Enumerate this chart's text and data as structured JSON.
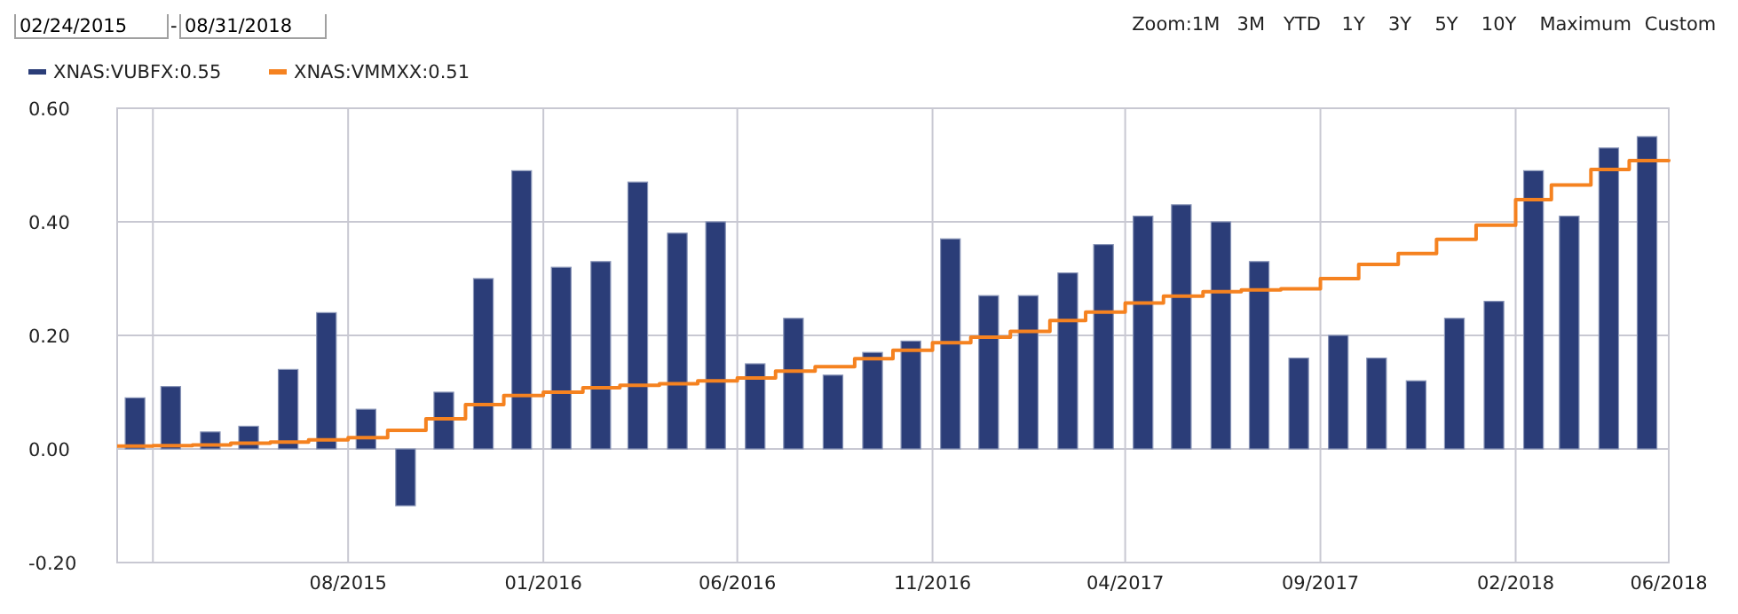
{
  "chart_data": {
    "type": "bar",
    "x": [
      "2015-02-15",
      "2015-03-15",
      "2015-04-15",
      "2015-05-15",
      "2015-06-15",
      "2015-07-15",
      "2015-08-15",
      "2015-09-15",
      "2015-10-15",
      "2015-11-15",
      "2015-12-15",
      "2016-01-15",
      "2016-02-15",
      "2016-03-15",
      "2016-04-15",
      "2016-05-15",
      "2016-06-15",
      "2016-07-15",
      "2016-08-15",
      "2016-09-15",
      "2016-10-15",
      "2016-11-15",
      "2016-12-15",
      "2017-01-15",
      "2017-02-15",
      "2017-03-15",
      "2017-04-15",
      "2017-05-15",
      "2017-06-15",
      "2017-07-15",
      "2017-08-15",
      "2017-09-15",
      "2017-10-15",
      "2017-11-15",
      "2017-12-15",
      "2018-01-15",
      "2018-02-15",
      "2018-03-15",
      "2018-04-15",
      "2018-05-15"
    ],
    "series": [
      {
        "name": "XNAS:VUBFX:0.55",
        "color": "#2b3d78",
        "values": [
          0.09,
          0.11,
          0.03,
          0.04,
          0.14,
          0.24,
          0.07,
          -0.1,
          0.1,
          0.3,
          0.49,
          0.32,
          0.33,
          0.47,
          0.38,
          0.4,
          0.15,
          0.23,
          0.13,
          0.17,
          0.19,
          0.37,
          0.27,
          0.27,
          0.31,
          0.36,
          0.41,
          0.43,
          0.4,
          0.33,
          0.16,
          0.2,
          0.16,
          0.12,
          0.23,
          0.26,
          0.49,
          0.41,
          0.53,
          0.55
        ]
      },
      {
        "name": "XNAS:VMMXX:0.51",
        "type": "step",
        "color": "#f58220",
        "x": [
          "2015-02-01",
          "2015-03-01",
          "2015-04-01",
          "2015-05-01",
          "2015-06-01",
          "2015-07-01",
          "2015-08-01",
          "2015-09-01",
          "2015-10-01",
          "2015-11-01",
          "2015-12-01",
          "2016-01-01",
          "2016-02-01",
          "2016-03-01",
          "2016-04-01",
          "2016-05-01",
          "2016-06-01",
          "2016-07-01",
          "2016-08-01",
          "2016-09-01",
          "2016-10-01",
          "2016-11-01",
          "2016-12-01",
          "2017-01-01",
          "2017-02-01",
          "2017-03-01",
          "2017-04-01",
          "2017-05-01",
          "2017-06-01",
          "2017-07-01",
          "2017-08-01",
          "2017-09-01",
          "2017-10-01",
          "2017-11-01",
          "2017-12-01",
          "2018-01-01",
          "2018-02-01",
          "2018-03-01",
          "2018-04-01",
          "2018-05-01",
          "2018-06-01"
        ],
        "values": [
          0.005,
          0.006,
          0.007,
          0.01,
          0.012,
          0.016,
          0.02,
          0.033,
          0.053,
          0.078,
          0.094,
          0.1,
          0.108,
          0.112,
          0.115,
          0.12,
          0.125,
          0.137,
          0.145,
          0.159,
          0.174,
          0.187,
          0.197,
          0.207,
          0.226,
          0.241,
          0.257,
          0.269,
          0.277,
          0.28,
          0.282,
          0.3,
          0.325,
          0.344,
          0.369,
          0.394,
          0.439,
          0.465,
          0.492,
          0.508,
          0.51
        ]
      }
    ],
    "xlim": [
      "2015-02-01",
      "2018-06-01"
    ],
    "xticks": [
      {
        "value": "2015-03-01",
        "label": null
      },
      {
        "value": "2015-08-01",
        "label": "08/2015"
      },
      {
        "value": "2016-01-01",
        "label": "01/2016"
      },
      {
        "value": "2016-06-01",
        "label": "06/2016"
      },
      {
        "value": "2016-11-01",
        "label": "11/2016"
      },
      {
        "value": "2017-04-01",
        "label": "04/2017"
      },
      {
        "value": "2017-09-01",
        "label": "09/2017"
      },
      {
        "value": "2018-02-01",
        "label": "02/2018"
      },
      {
        "value": "2018-06-01",
        "label": "06/2018"
      }
    ],
    "ylim": [
      -0.2,
      0.6
    ],
    "yticks": [
      {
        "value": -0.2,
        "label": "-0.20"
      },
      {
        "value": 0,
        "label": "0.00"
      },
      {
        "value": 0.2,
        "label": "0.20"
      },
      {
        "value": 0.4,
        "label": "0.40"
      },
      {
        "value": 0.6,
        "label": "0.60"
      }
    ],
    "grid": true,
    "legend": "top left",
    "annotations": [
      "02/24/2015",
      "-",
      "08/31/2018",
      "Zoom:1M",
      "3M",
      "YTD",
      "1Y",
      "3Y",
      "5Y",
      "10Y",
      "Maximum",
      "Custom"
    ]
  }
}
